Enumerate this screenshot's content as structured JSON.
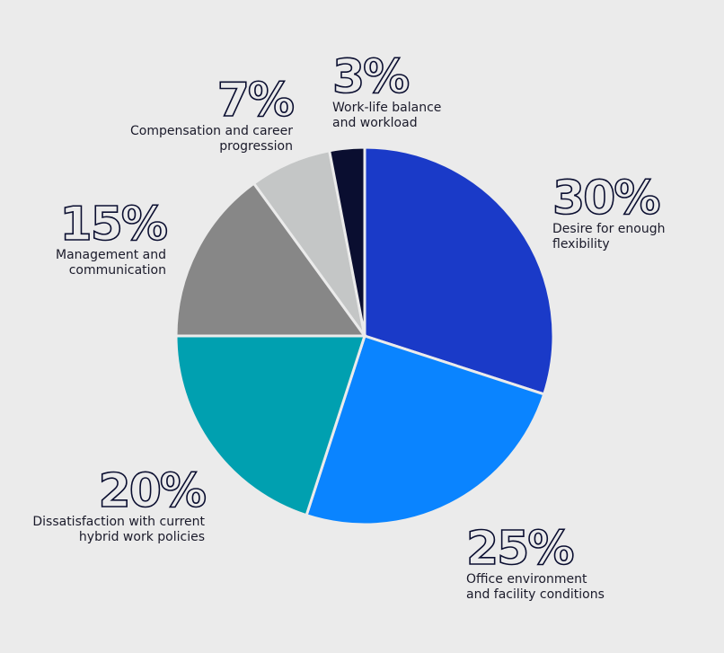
{
  "chart_data": {
    "type": "pie",
    "categories": [
      "Desire for enough flexibility",
      "Office environment and facility conditions",
      "Dissatisfaction with current hybrid work policies",
      "Management and communication",
      "Compensation and career progression",
      "Work-life balance and workload"
    ],
    "values": [
      30,
      25,
      20,
      15,
      7,
      3
    ],
    "value_labels": [
      "30%",
      "25%",
      "20%",
      "15%",
      "7%",
      "3%"
    ],
    "colors": [
      "#1a3ac8",
      "#0a84ff",
      "#00a0b0",
      "#878787",
      "#c4c6c6",
      "#0a0e30"
    ]
  }
}
